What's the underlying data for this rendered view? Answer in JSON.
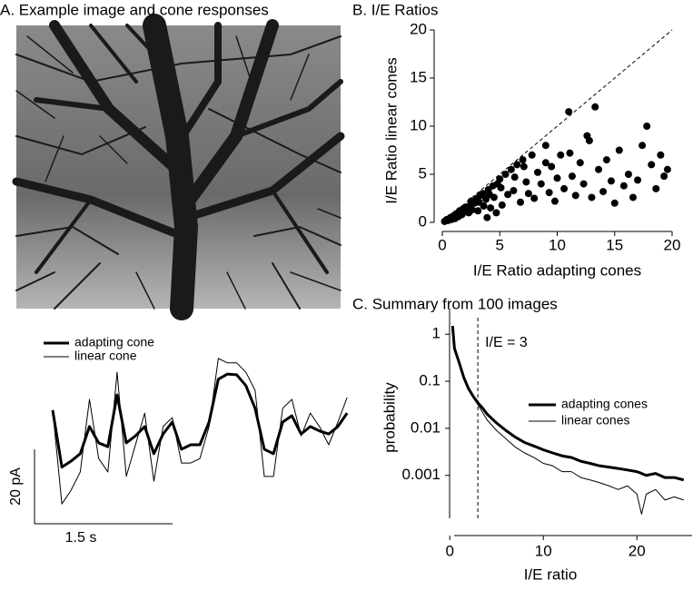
{
  "chart_data": [
    {
      "type": "trace",
      "title": "A. Example image and cone responses",
      "x": [
        0,
        0.1,
        0.2,
        0.3,
        0.4,
        0.5,
        0.6,
        0.7,
        0.8,
        0.9,
        1,
        1.1,
        1.2,
        1.3,
        1.4,
        1.5,
        1.6,
        1.7,
        1.8,
        1.9,
        2,
        2.1,
        2.2,
        2.3,
        2.4,
        2.5,
        2.6,
        2.7,
        2.8,
        2.9,
        3,
        3.1,
        3.2
      ],
      "series": [
        {
          "name": "adapting cone",
          "color": "#000000",
          "line_width": 3,
          "values": [
            9.3,
            -6,
            -4.4,
            -2.4,
            4.9,
            0.5,
            -0.5,
            13.4,
            0.5,
            2.4,
            4.9,
            -2.4,
            2.9,
            6.1,
            -1.2,
            0,
            0,
            6.1,
            17.6,
            19,
            18.8,
            15.9,
            9.8,
            -1.2,
            -2.4,
            6.1,
            7.8,
            2.9,
            4.9,
            3.7,
            2.9,
            4.9,
            8.5
          ]
        },
        {
          "name": "linear cone",
          "color": "#000000",
          "line_width": 1,
          "values": [
            9.3,
            -15.9,
            -12.2,
            -7.3,
            12.2,
            -3.7,
            -7.3,
            19.5,
            -8.5,
            0,
            8.5,
            -9.8,
            4.9,
            7.3,
            -4.9,
            -4.9,
            -3.7,
            4.9,
            23.2,
            22,
            22,
            19.5,
            14.6,
            -8.5,
            -8.5,
            9.8,
            12.2,
            2.4,
            8.5,
            4.9,
            0,
            6.1,
            12.7
          ]
        }
      ],
      "scalebar": {
        "x": 1.5,
        "x_label": "1.5 s",
        "y": 20,
        "y_label": "20 pA"
      }
    },
    {
      "type": "scatter",
      "title": "B. I/E Ratios",
      "x_label": "I/E Ratio adapting cones",
      "y_label": "I/E Ratio linear cones",
      "xlim": [
        0,
        20
      ],
      "ylim": [
        0,
        20
      ],
      "xticks": [
        0,
        5,
        10,
        15,
        20
      ],
      "yticks": [
        0,
        5,
        10,
        15,
        20
      ],
      "diagonal": true,
      "color": "#000000",
      "x": [
        0.2,
        0.4,
        0.5,
        0.7,
        0.8,
        1,
        1.1,
        1.2,
        1.4,
        1.5,
        1.7,
        1.8,
        2,
        2.1,
        2.3,
        2.5,
        2.6,
        2.8,
        3,
        3.1,
        3.3,
        3.5,
        3.6,
        3.8,
        4,
        4.2,
        4.4,
        4.5,
        4.8,
        5,
        5.2,
        5.5,
        5.7,
        6,
        6.2,
        6.5,
        6.8,
        7,
        7.3,
        7.5,
        7.8,
        8,
        8.3,
        8.6,
        9,
        9.3,
        9.5,
        9.8,
        10,
        10.3,
        10.6,
        11,
        11.3,
        11.6,
        12,
        12.3,
        12.6,
        13,
        13.3,
        13.6,
        14,
        14.3,
        14.7,
        15,
        15.4,
        15.8,
        16.2,
        16.6,
        17,
        17.4,
        17.8,
        18.2,
        18.6,
        19,
        19.3,
        19.6,
        0.3,
        0.9,
        1.6,
        2.4,
        3.2,
        4.1,
        5.1,
        6.3,
        7.1,
        9,
        11.1,
        12.8,
        4.7,
        3.9
      ],
      "values": [
        0.1,
        0.3,
        0.2,
        0.5,
        0.3,
        0.7,
        0.4,
        0.9,
        0.6,
        1.2,
        0.8,
        1.4,
        1.1,
        1.6,
        1.0,
        2.2,
        1.3,
        2.0,
        2.5,
        1.2,
        2.8,
        3.0,
        1.7,
        2.4,
        3.4,
        1.5,
        3.8,
        2.6,
        4.0,
        4.5,
        1.8,
        5.0,
        2.9,
        5.5,
        3.3,
        6.0,
        2.1,
        6.5,
        4.2,
        3.0,
        7.0,
        2.5,
        5.2,
        4.0,
        8.0,
        3.1,
        5.8,
        2.2,
        4.6,
        7.0,
        3.5,
        11.5,
        4.8,
        2.8,
        6.2,
        4.0,
        9.0,
        2.6,
        12,
        5.5,
        3.2,
        6.5,
        4.3,
        2.0,
        7.5,
        3.8,
        5.0,
        2.6,
        4.4,
        8.0,
        10,
        6.0,
        3.5,
        7.0,
        4.8,
        5.5,
        0.2,
        0.6,
        0.9,
        1.7,
        2.1,
        2.9,
        3.6,
        4.7,
        5.8,
        6.2,
        7.2,
        8.5,
        1.0,
        0.5
      ]
    },
    {
      "type": "line",
      "title": "C. Summary from 100 images",
      "x_label": "I/E ratio",
      "y_label": "probability",
      "log_y": true,
      "xlim": [
        -0.7,
        25.9
      ],
      "ylim": [
        0.00014,
        3.5
      ],
      "xticks": [
        0,
        10,
        20
      ],
      "yticks": [
        1,
        0.1,
        0.01,
        0.001
      ],
      "annotation": "I/E = 3",
      "vline": 3,
      "x": [
        0.3,
        0.5,
        1,
        1.5,
        2,
        2.5,
        3,
        3.5,
        4,
        5,
        6,
        7,
        8,
        9,
        10,
        11,
        12,
        13,
        14,
        15,
        16,
        17,
        18,
        19,
        20,
        20.5,
        21,
        22,
        23,
        24,
        25
      ],
      "series": [
        {
          "name": "adapting cones",
          "color": "#000000",
          "line_width": 3,
          "values": [
            1.5,
            0.5,
            0.25,
            0.12,
            0.07,
            0.048,
            0.035,
            0.027,
            0.02,
            0.013,
            0.009,
            0.0065,
            0.005,
            0.0042,
            0.0035,
            0.003,
            0.0026,
            0.0024,
            0.002,
            0.0018,
            0.0016,
            0.0015,
            0.0014,
            0.0013,
            0.0012,
            0.0011,
            0.001,
            0.0011,
            0.0009,
            0.0009,
            0.0008
          ]
        },
        {
          "name": "linear cones",
          "color": "#000000",
          "line_width": 1,
          "values": [
            1.5,
            0.5,
            0.25,
            0.11,
            0.065,
            0.045,
            0.032,
            0.022,
            0.015,
            0.009,
            0.006,
            0.004,
            0.003,
            0.0024,
            0.0018,
            0.0016,
            0.0012,
            0.0012,
            0.0009,
            0.0008,
            0.0007,
            0.0006,
            0.0005,
            0.0006,
            0.0004,
            0.00015,
            0.0004,
            0.0005,
            0.0003,
            0.00035,
            0.0003
          ]
        }
      ]
    }
  ]
}
